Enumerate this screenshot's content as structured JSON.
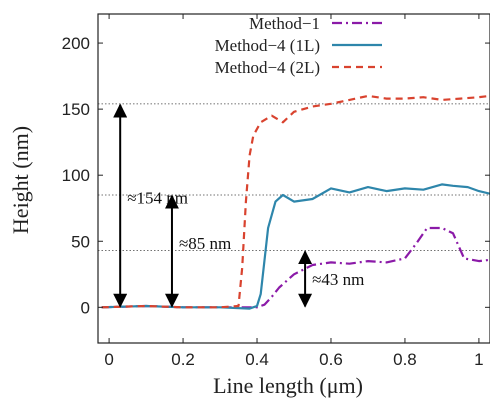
{
  "chart_data": {
    "type": "line",
    "title": "",
    "xlabel": "Line length (μm)",
    "ylabel": "Height (nm)",
    "xlim": [
      -0.03,
      1.03
    ],
    "ylim": [
      -27,
      222
    ],
    "xticks": [
      0,
      0.2,
      0.4,
      0.6,
      0.8,
      1
    ],
    "xtick_labels": [
      "0",
      "0.2",
      "0.4",
      "0.6",
      "0.8",
      "1"
    ],
    "yticks": [
      0,
      50,
      100,
      150,
      200
    ],
    "ytick_labels": [
      "0",
      "50",
      "100",
      "150",
      "200"
    ],
    "grid": false,
    "legend_position": "top-right",
    "series": [
      {
        "name": "Method−1",
        "color": "#8B1AA8",
        "style": "dashdot",
        "x": [
          -0.02,
          0.1,
          0.2,
          0.3,
          0.4,
          0.42,
          0.44,
          0.46,
          0.5,
          0.55,
          0.6,
          0.65,
          0.7,
          0.75,
          0.8,
          0.83,
          0.86,
          0.9,
          0.93,
          0.96,
          1.0,
          1.03
        ],
        "y": [
          0,
          1,
          0,
          0,
          0,
          2,
          8,
          15,
          25,
          32,
          34,
          33,
          35,
          34,
          37,
          48,
          60,
          60,
          56,
          37,
          35,
          36
        ]
      },
      {
        "name": "Method−4 (1L)",
        "color": "#2E86AB",
        "style": "solid",
        "x": [
          -0.02,
          0.1,
          0.2,
          0.3,
          0.38,
          0.4,
          0.41,
          0.42,
          0.43,
          0.45,
          0.47,
          0.5,
          0.55,
          0.6,
          0.65,
          0.7,
          0.75,
          0.8,
          0.85,
          0.9,
          0.93,
          0.97,
          1.0,
          1.03
        ],
        "y": [
          0,
          1,
          0,
          0,
          -1,
          1,
          10,
          35,
          60,
          80,
          85,
          80,
          82,
          90,
          87,
          91,
          88,
          90,
          89,
          93,
          92,
          91,
          88,
          86
        ]
      },
      {
        "name": "Method−4 (2L)",
        "color": "#D9432F",
        "style": "dashed",
        "x": [
          -0.02,
          0.1,
          0.2,
          0.3,
          0.35,
          0.36,
          0.37,
          0.38,
          0.39,
          0.41,
          0.44,
          0.47,
          0.5,
          0.55,
          0.6,
          0.65,
          0.7,
          0.75,
          0.8,
          0.85,
          0.9,
          0.95,
          1.0,
          1.03
        ],
        "y": [
          0,
          1,
          0,
          0,
          1,
          30,
          80,
          115,
          130,
          140,
          145,
          140,
          148,
          152,
          154,
          157,
          160,
          158,
          158,
          159,
          157,
          158,
          159,
          160
        ]
      }
    ],
    "reference_lines": [
      {
        "y": 154,
        "label": "≈154 nm",
        "arrow_x": 0.03
      },
      {
        "y": 85,
        "label": "≈85 nm",
        "arrow_x": 0.17
      },
      {
        "y": 43,
        "label": "≈43 nm",
        "arrow_x": 0.53
      }
    ]
  }
}
